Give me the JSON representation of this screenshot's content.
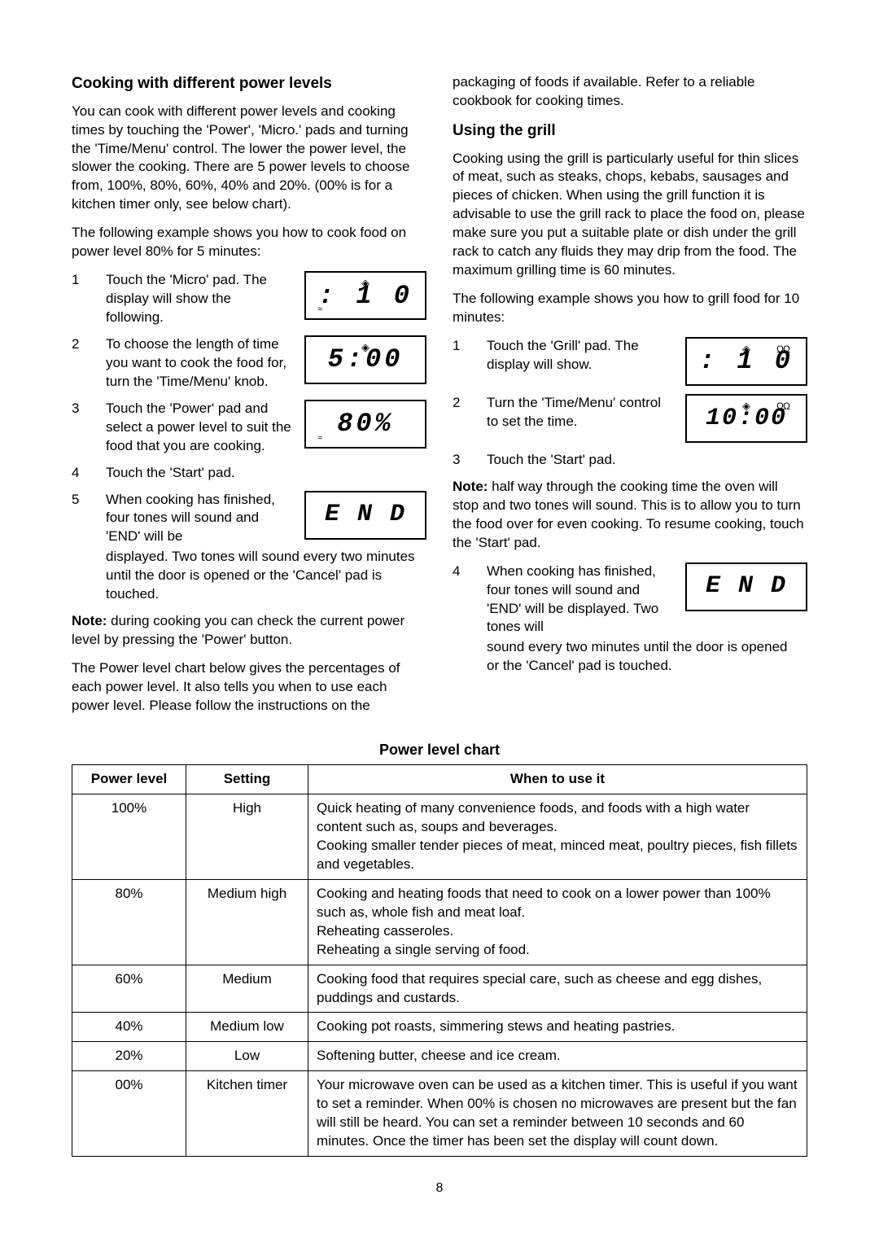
{
  "left": {
    "heading": "Cooking with different power levels",
    "intro": "You can cook with different power levels and cooking times by touching the 'Power', 'Micro.' pads and turning the 'Time/Menu' control. The lower the power level, the slower the cooking. There are 5 power levels to choose from, 100%, 80%, 60%, 40% and 20%. (00% is for a kitchen timer only, see below chart).",
    "example_lead": "The following example shows you how to cook food on power level 80%  for 5 minutes:",
    "steps": [
      {
        "n": "1",
        "t": "Touch the 'Micro' pad. The display will show the following.",
        "disp": ": 1 0",
        "sym": [
          "diamond",
          "wave"
        ]
      },
      {
        "n": "2",
        "t": "To choose the length of time you want to cook the food for, turn the 'Time/Menu' knob.",
        "disp": "5:00",
        "sym": [
          "diamond"
        ]
      },
      {
        "n": "3",
        "t": "Touch the 'Power' pad and select a power level to suit the food that you are cooking.",
        "disp": "80%",
        "sym": [
          "wave"
        ]
      },
      {
        "n": "4",
        "t": "Touch the 'Start' pad.",
        "disp": null
      },
      {
        "n": "5",
        "t": "When cooking has finished, four tones will sound and 'END' will be",
        "disp": "E N D",
        "sym": []
      }
    ],
    "step5_cont": "displayed. Two tones will sound every two minutes until the door is opened or the 'Cancel' pad is touched.",
    "note_label": "Note:",
    "note": " during cooking you can check the current power level by pressing the 'Power' button.",
    "closing": "The Power level chart below gives the percentages of each power level. It also tells you when to use each power level. Please follow the instructions on the"
  },
  "right": {
    "top_cont": "packaging of foods if available. Refer to a reliable cookbook for cooking times.",
    "heading": "Using the grill",
    "intro": "Cooking using the grill is particularly useful for thin slices of meat, such as steaks, chops, kebabs, sausages and pieces of chicken. When using the grill function it is advisable to use the grill rack to place the food on, please make sure you put a suitable plate or dish under the grill rack to catch any fluids they may drip from the food. The maximum grilling time is 60 minutes.",
    "example_lead": "The following example shows you how to grill food for 10 minutes:",
    "steps": [
      {
        "n": "1",
        "t": "Touch the 'Grill' pad. The display will show.",
        "disp": ": 1 0",
        "sym": [
          "diamond",
          "grill"
        ]
      },
      {
        "n": "2",
        "t": "Turn the 'Time/Menu' control to set the time.",
        "disp": "10:00",
        "sym": [
          "diamond",
          "grill"
        ]
      },
      {
        "n": "3",
        "t": "Touch the 'Start' pad.",
        "disp": null
      }
    ],
    "note_label": "Note:",
    "note": " half way through the cooking time the oven will stop and two tones will sound. This is to allow you to turn the food over for even cooking. To resume cooking, touch the 'Start' pad.",
    "step4": {
      "n": "4",
      "t": "When cooking has finished, four tones will sound and 'END' will be displayed. Two tones will",
      "disp": "E N D"
    },
    "step4_cont": "sound every two minutes until the door is opened or the 'Cancel' pad is touched."
  },
  "chart": {
    "title": "Power level chart",
    "headers": [
      "Power level",
      "Setting",
      "When to use it"
    ],
    "rows": [
      [
        "100%",
        "High",
        "Quick heating of many convenience foods, and foods with a high water content such as, soups and beverages.\nCooking smaller tender pieces of meat, minced meat, poultry pieces, fish fillets and vegetables."
      ],
      [
        "80%",
        "Medium high",
        "Cooking and heating foods that need to cook on a lower power than 100% such as, whole fish and meat loaf.\nReheating casseroles.\nReheating a single serving of food."
      ],
      [
        "60%",
        "Medium",
        "Cooking food that requires special care, such as cheese and egg dishes, puddings and custards."
      ],
      [
        "40%",
        "Medium low",
        "Cooking pot roasts, simmering stews and heating pastries."
      ],
      [
        "20%",
        "Low",
        "Softening butter, cheese and ice cream."
      ],
      [
        "00%",
        "Kitchen timer",
        "Your microwave oven can be used as a kitchen timer. This is useful if you want to set a reminder. When 00% is chosen no microwaves are present but the fan will still be heard. You can set a reminder between 10 seconds and 60 minutes. Once the timer has been set the display will count down."
      ]
    ]
  },
  "page": "8"
}
